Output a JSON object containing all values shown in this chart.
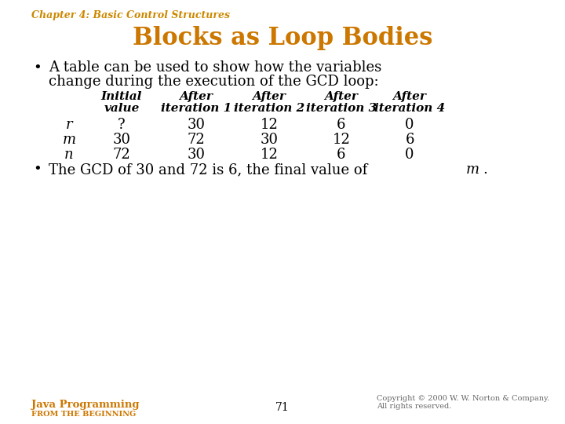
{
  "chapter_text": "Chapter 4: Basic Control Structures",
  "chapter_color": "#CC8800",
  "title": "Blocks as Loop Bodies",
  "title_color": "#CC7700",
  "bg_color": "#FFFFFF",
  "bullet1_line1": "A table can be used to show how the variables",
  "bullet1_line2": "change during the execution of the GCD loop:",
  "table_header_row1": [
    "Initial",
    "After",
    "After",
    "After",
    "After"
  ],
  "table_header_row2": [
    "value",
    "iteration 1",
    "iteration 2",
    "iteration 3",
    "iteration 4"
  ],
  "table_rows": [
    [
      "r",
      "?",
      "30",
      "12",
      "6",
      "0"
    ],
    [
      "m",
      "30",
      "72",
      "30",
      "12",
      "6"
    ],
    [
      "n",
      "72",
      "30",
      "12",
      "6",
      "0"
    ]
  ],
  "bullet2_text1": "The GCD of 30 and 72 is 6, the final value of ",
  "bullet2_m": "m",
  "bullet2_end": ".",
  "footer_left1": "Java Programming",
  "footer_left2": "FROM THE BEGINNING",
  "footer_center": "71",
  "footer_right": "Copyright © 2000 W. W. Norton & Company.\nAll rights reserved.",
  "footer_color": "#CC7700",
  "text_color": "#000000"
}
